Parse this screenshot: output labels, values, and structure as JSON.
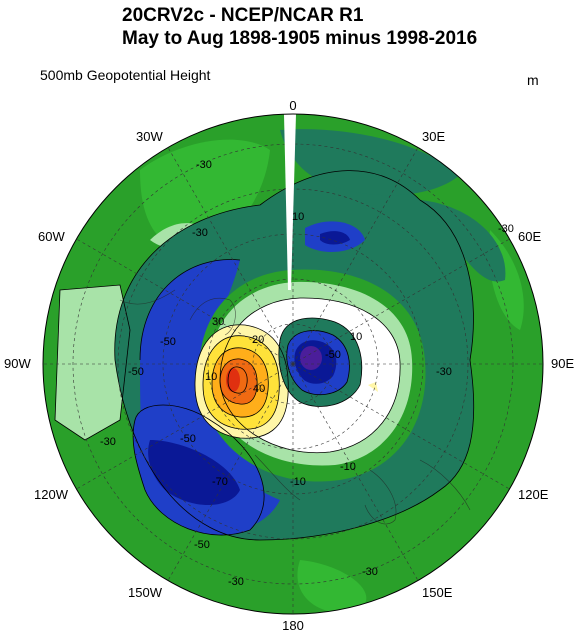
{
  "title_line1": "20CRV2c - NCEP/NCAR R1",
  "title_line2": "May to Aug 1898-1905 minus 1998-2016",
  "subtitle": "500mb Geopotential Height",
  "units": "m",
  "longitude_labels": {
    "lon_0": "0",
    "lon_30e": "30E",
    "lon_60e": "60E",
    "lon_90e": "90E",
    "lon_120e": "120E",
    "lon_150e": "150E",
    "lon_180": "180",
    "lon_150w": "150W",
    "lon_120w": "120W",
    "lon_90w": "90W",
    "lon_60w": "60W",
    "lon_30w": "30W"
  },
  "contour_labels": {
    "c_neg30_a": "-30",
    "c_neg30_b": "-30",
    "c_neg30_c": "-30",
    "c_neg30_d": "-30",
    "c_neg30_e": "-30",
    "c_neg30_f": "-30",
    "c_neg50_a": "-50",
    "c_neg50_b": "-50",
    "c_neg50_c": "-50",
    "c_neg50_d": "-50",
    "c_neg50_e": "-50",
    "c_neg70": "-70",
    "c_neg10_a": "-10",
    "c_neg10_b": "10",
    "c_pos10_a": "10",
    "c_pos20": "20",
    "c_pos30": "30",
    "c_pos40": "40",
    "c_pos10_b": "10",
    "c_neg10_c": "-10",
    "c_neg30_g": "-30"
  },
  "palette": {
    "lightest_green": "#a8e3a8",
    "light_green": "#33b833",
    "green": "#2aa02a",
    "dark_teal": "#1f7a5c",
    "blue": "#1f3fc8",
    "dark_blue": "#0a1896",
    "purple": "#4b1e9a",
    "pale_green": "#d5f3d5",
    "white": "#ffffff",
    "pale_yellow": "#fff6a8",
    "yellow": "#ffe23a",
    "orange": "#ffae1a",
    "deep_orange": "#f06a12",
    "red": "#e03010"
  }
}
